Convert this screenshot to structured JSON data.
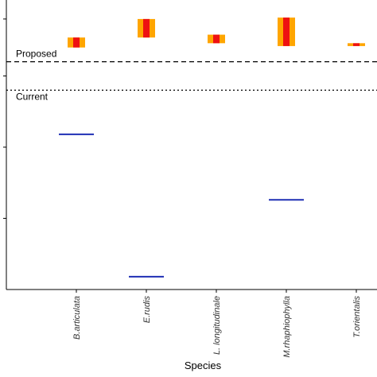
{
  "chart_data": {
    "type": "bar",
    "title": "",
    "xlabel": "Species",
    "ylabel": "",
    "categories": [
      "B.articulata",
      "E.rudis",
      "L. longitudinale",
      "M.rhaphiophylla",
      "T.orientalis"
    ],
    "ylim": [
      0,
      100
    ],
    "reference_lines": [
      {
        "label": "Proposed",
        "value": 80,
        "style": "dashed"
      },
      {
        "label": "Current",
        "value": 70,
        "style": "dotted"
      }
    ],
    "current_values": [
      54.5,
      4.5,
      null,
      31.5,
      null
    ],
    "proposed_ranges": {
      "outer": [
        [
          85,
          88.5
        ],
        [
          88.5,
          95
        ],
        [
          86.5,
          89.5
        ],
        [
          85.5,
          95.5
        ],
        [
          85.5,
          86.5
        ]
      ],
      "inner": [
        [
          85,
          88.5
        ],
        [
          88.5,
          95
        ],
        [
          86.5,
          89.5
        ],
        [
          85.5,
          95.5
        ],
        [
          85.5,
          86.5
        ]
      ]
    },
    "colors": {
      "current": "#1f2fb4",
      "outer": "#ffa500",
      "inner": "#ee1111"
    }
  }
}
